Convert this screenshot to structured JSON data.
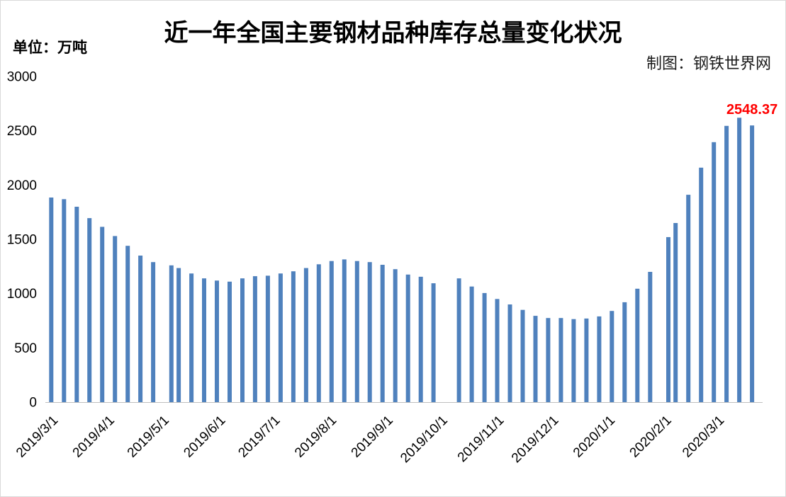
{
  "colors": {
    "bar": "#4f81bd",
    "annotation": "#ff0000"
  },
  "chart_data": {
    "type": "bar",
    "title": "近一年全国主要钢材品种库存总量变化状况",
    "ylabel": "单位：万吨",
    "credit": "制图：钢铁世界网",
    "x_scale": "date",
    "x": [
      "2019/2/26",
      "2019/3/5",
      "2019/3/12",
      "2019/3/19",
      "2019/3/26",
      "2019/4/2",
      "2019/4/9",
      "2019/4/16",
      "2019/4/23",
      "2019/5/3",
      "2019/5/7",
      "2019/5/14",
      "2019/5/21",
      "2019/5/28",
      "2019/6/4",
      "2019/6/11",
      "2019/6/18",
      "2019/6/25",
      "2019/7/2",
      "2019/7/9",
      "2019/7/16",
      "2019/7/23",
      "2019/7/30",
      "2019/8/6",
      "2019/8/13",
      "2019/8/20",
      "2019/8/27",
      "2019/9/3",
      "2019/9/10",
      "2019/9/17",
      "2019/9/24",
      "2019/10/8",
      "2019/10/15",
      "2019/10/22",
      "2019/10/29",
      "2019/11/5",
      "2019/11/12",
      "2019/11/19",
      "2019/11/26",
      "2019/12/3",
      "2019/12/10",
      "2019/12/17",
      "2019/12/24",
      "2019/12/31",
      "2020/1/7",
      "2020/1/14",
      "2020/1/21",
      "2020/1/31",
      "2020/2/4",
      "2020/2/11",
      "2020/2/18",
      "2020/2/25",
      "2020/3/3",
      "2020/3/10",
      "2020/3/17"
    ],
    "values": [
      1885,
      1870,
      1800,
      1695,
      1615,
      1530,
      1440,
      1350,
      1290,
      1260,
      1235,
      1185,
      1140,
      1120,
      1110,
      1140,
      1160,
      1165,
      1185,
      1205,
      1235,
      1270,
      1300,
      1315,
      1300,
      1290,
      1265,
      1225,
      1175,
      1155,
      1095,
      1140,
      1065,
      1005,
      950,
      900,
      850,
      795,
      775,
      775,
      765,
      770,
      790,
      840,
      920,
      1045,
      1200,
      1520,
      1650,
      1910,
      2160,
      2395,
      2545,
      2620,
      2548.37
    ],
    "ylim": [
      0,
      3000
    ],
    "y_ticks": [
      0,
      500,
      1000,
      1500,
      2000,
      2500,
      3000
    ],
    "x_ticks": [
      "2019/3/1",
      "2019/4/1",
      "2019/5/1",
      "2019/6/1",
      "2019/7/1",
      "2019/8/1",
      "2019/9/1",
      "2019/10/1",
      "2019/11/1",
      "2019/12/1",
      "2020/1/1",
      "2020/2/1",
      "2020/3/1"
    ],
    "annotations": [
      {
        "x": "2020/3/17",
        "y": 2548.37,
        "text": "2548.37"
      }
    ],
    "grid": false
  }
}
